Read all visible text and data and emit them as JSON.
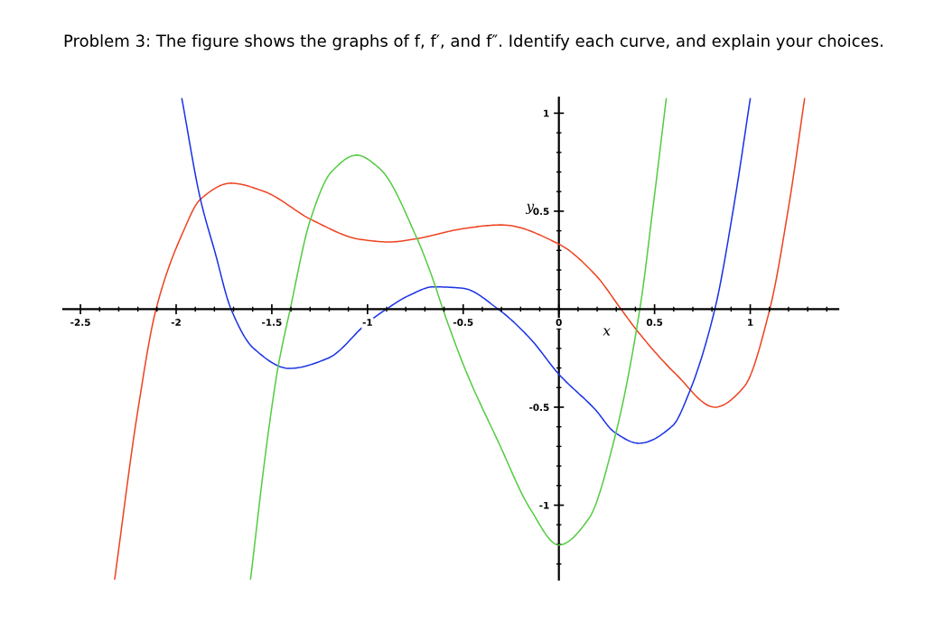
{
  "chart_data": {
    "type": "line",
    "title": "Problem 3: The figure shows the graphs of f, f′, and f″. Identify each curve, and explain your choices.",
    "xlabel": "x",
    "ylabel": "y",
    "xlim": [
      -2.59,
      1.46
    ],
    "ylim": [
      -1.38,
      1.08
    ],
    "xticks": [
      -2.5,
      -2,
      -1.5,
      -1,
      -0.5,
      0,
      0.5,
      1
    ],
    "yticks": [
      -1,
      -0.5,
      0.5,
      1
    ],
    "grid": false,
    "legend": false,
    "line_style": "solid",
    "series": [
      {
        "color": "#ee4422",
        "x": [
          -2.321,
          -2.202,
          -2.105,
          -1.966,
          -1.873,
          -1.713,
          -1.544,
          -1.29,
          -1.037,
          -0.885,
          -0.741,
          -0.655,
          -0.513,
          -0.3,
          0,
          0.19,
          0.325,
          0.409,
          0.612,
          0.815,
          0.967,
          1.102,
          1.203,
          1.284
        ],
        "values": [
          -1.377,
          -0.528,
          0,
          0.389,
          0.561,
          0.643,
          0.602,
          0.455,
          0.356,
          0.343,
          0.36,
          0.378,
          0.409,
          0.43,
          0.332,
          0.176,
          0,
          -0.11,
          -0.332,
          -0.5,
          -0.397,
          0,
          0.537,
          1.074
        ]
      },
      {
        "color": "#1a33e6",
        "x": [
          -1.97,
          -1.873,
          -1.797,
          -1.713,
          -1.595,
          -1.409,
          -1.206,
          -1.0,
          -0.902,
          -0.783,
          -0.655,
          -0.503,
          -0.317,
          -0.149,
          0,
          0.19,
          0.29,
          0.418,
          0.595,
          0.679,
          0.815,
          0.916,
          1.0
        ],
        "values": [
          1.074,
          0.561,
          0.291,
          0,
          -0.2,
          -0.302,
          -0.25,
          -0.069,
          0,
          0.07,
          0.114,
          0.107,
          0,
          -0.151,
          -0.332,
          -0.512,
          -0.627,
          -0.684,
          -0.594,
          -0.43,
          0,
          0.537,
          1.074
        ]
      },
      {
        "color": "#55cc44",
        "x": [
          -1.611,
          -1.527,
          -1.468,
          -1.404,
          -1.299,
          -1.189,
          -1.057,
          -0.936,
          -0.741,
          -0.655,
          -0.606,
          -0.486,
          -0.317,
          -0.149,
          0,
          0.156,
          0.291,
          0.423,
          0.494,
          0.561
        ],
        "values": [
          -1.377,
          -0.692,
          -0.299,
          0,
          0.455,
          0.7,
          0.786,
          0.717,
          0.36,
          0.144,
          0,
          -0.315,
          -0.676,
          -1.02,
          -1.203,
          -1.069,
          -0.659,
          0,
          0.537,
          1.074
        ]
      }
    ]
  }
}
